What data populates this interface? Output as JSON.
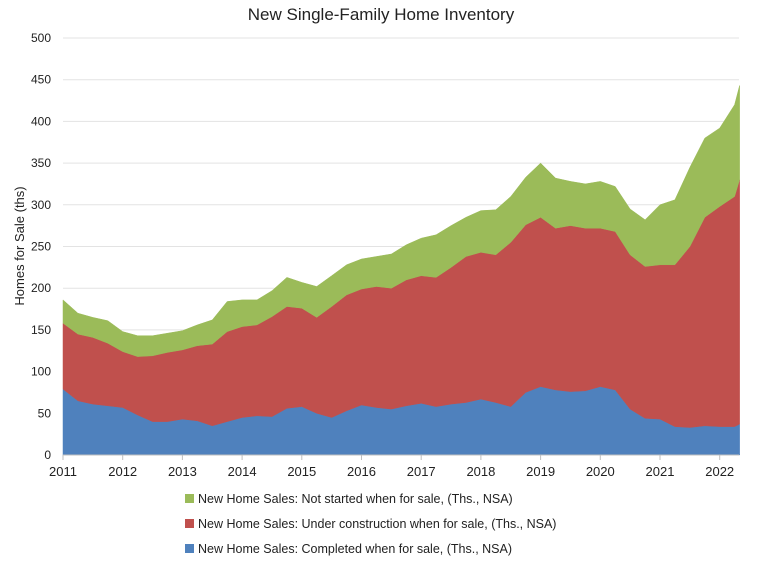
{
  "chart_data": {
    "type": "area",
    "stacked": true,
    "title": "New Single-Family Home Inventory",
    "xlabel": "",
    "ylabel": "Homes for Sale (ths)",
    "ylim": [
      0,
      500
    ],
    "yticks": [
      0,
      50,
      100,
      150,
      200,
      250,
      300,
      350,
      400,
      450,
      500
    ],
    "xticks": [
      "2011",
      "2012",
      "2013",
      "2014",
      "2015",
      "2016",
      "2017",
      "2018",
      "2019",
      "2020",
      "2021",
      "2022"
    ],
    "grid": "horizontal",
    "legend_placement": "bottom",
    "x": [
      "2011-01",
      "2011-04",
      "2011-07",
      "2011-10",
      "2012-01",
      "2012-04",
      "2012-07",
      "2012-10",
      "2013-01",
      "2013-04",
      "2013-07",
      "2013-10",
      "2014-01",
      "2014-04",
      "2014-07",
      "2014-10",
      "2015-01",
      "2015-04",
      "2015-07",
      "2015-10",
      "2016-01",
      "2016-04",
      "2016-07",
      "2016-10",
      "2017-01",
      "2017-04",
      "2017-07",
      "2017-10",
      "2018-01",
      "2018-04",
      "2018-07",
      "2018-10",
      "2019-01",
      "2019-04",
      "2019-07",
      "2019-10",
      "2020-01",
      "2020-04",
      "2020-07",
      "2020-10",
      "2021-01",
      "2021-04",
      "2021-07",
      "2021-10",
      "2022-01",
      "2022-04",
      "2022-05"
    ],
    "series": [
      {
        "name": "New Home Sales: Completed when for sale, (Ths., NSA)",
        "color": "#4f81bd",
        "values": [
          79,
          65,
          61,
          59,
          57,
          48,
          40,
          40,
          43,
          41,
          35,
          40,
          45,
          47,
          46,
          56,
          58,
          50,
          45,
          53,
          60,
          57,
          55,
          59,
          62,
          58,
          61,
          63,
          67,
          63,
          58,
          75,
          82,
          78,
          76,
          77,
          82,
          78,
          55,
          44,
          43,
          34,
          33,
          35,
          34,
          34,
          37
        ]
      },
      {
        "name": "New Home Sales: Under construction when for sale, (Ths., NSA)",
        "color": "#c0504d",
        "values": [
          79,
          80,
          80,
          75,
          67,
          70,
          79,
          83,
          83,
          90,
          98,
          108,
          109,
          109,
          120,
          122,
          118,
          115,
          133,
          139,
          139,
          145,
          145,
          151,
          153,
          155,
          164,
          175,
          176,
          177,
          197,
          201,
          203,
          194,
          199,
          195,
          190,
          190,
          185,
          182,
          185,
          194,
          217,
          250,
          264,
          276,
          293
        ]
      },
      {
        "name": "New Home Sales: Not started when for sale, (Ths., NSA)",
        "color": "#9bbb59",
        "values": [
          28,
          25,
          24,
          27,
          24,
          25,
          24,
          23,
          23,
          25,
          29,
          36,
          32,
          30,
          31,
          35,
          31,
          37,
          37,
          36,
          36,
          36,
          41,
          42,
          45,
          51,
          50,
          47,
          50,
          54,
          55,
          57,
          65,
          60,
          53,
          53,
          56,
          54,
          55,
          56,
          72,
          78,
          95,
          95,
          94,
          110,
          113
        ]
      }
    ],
    "legend_order": [
      2,
      1,
      0
    ]
  }
}
